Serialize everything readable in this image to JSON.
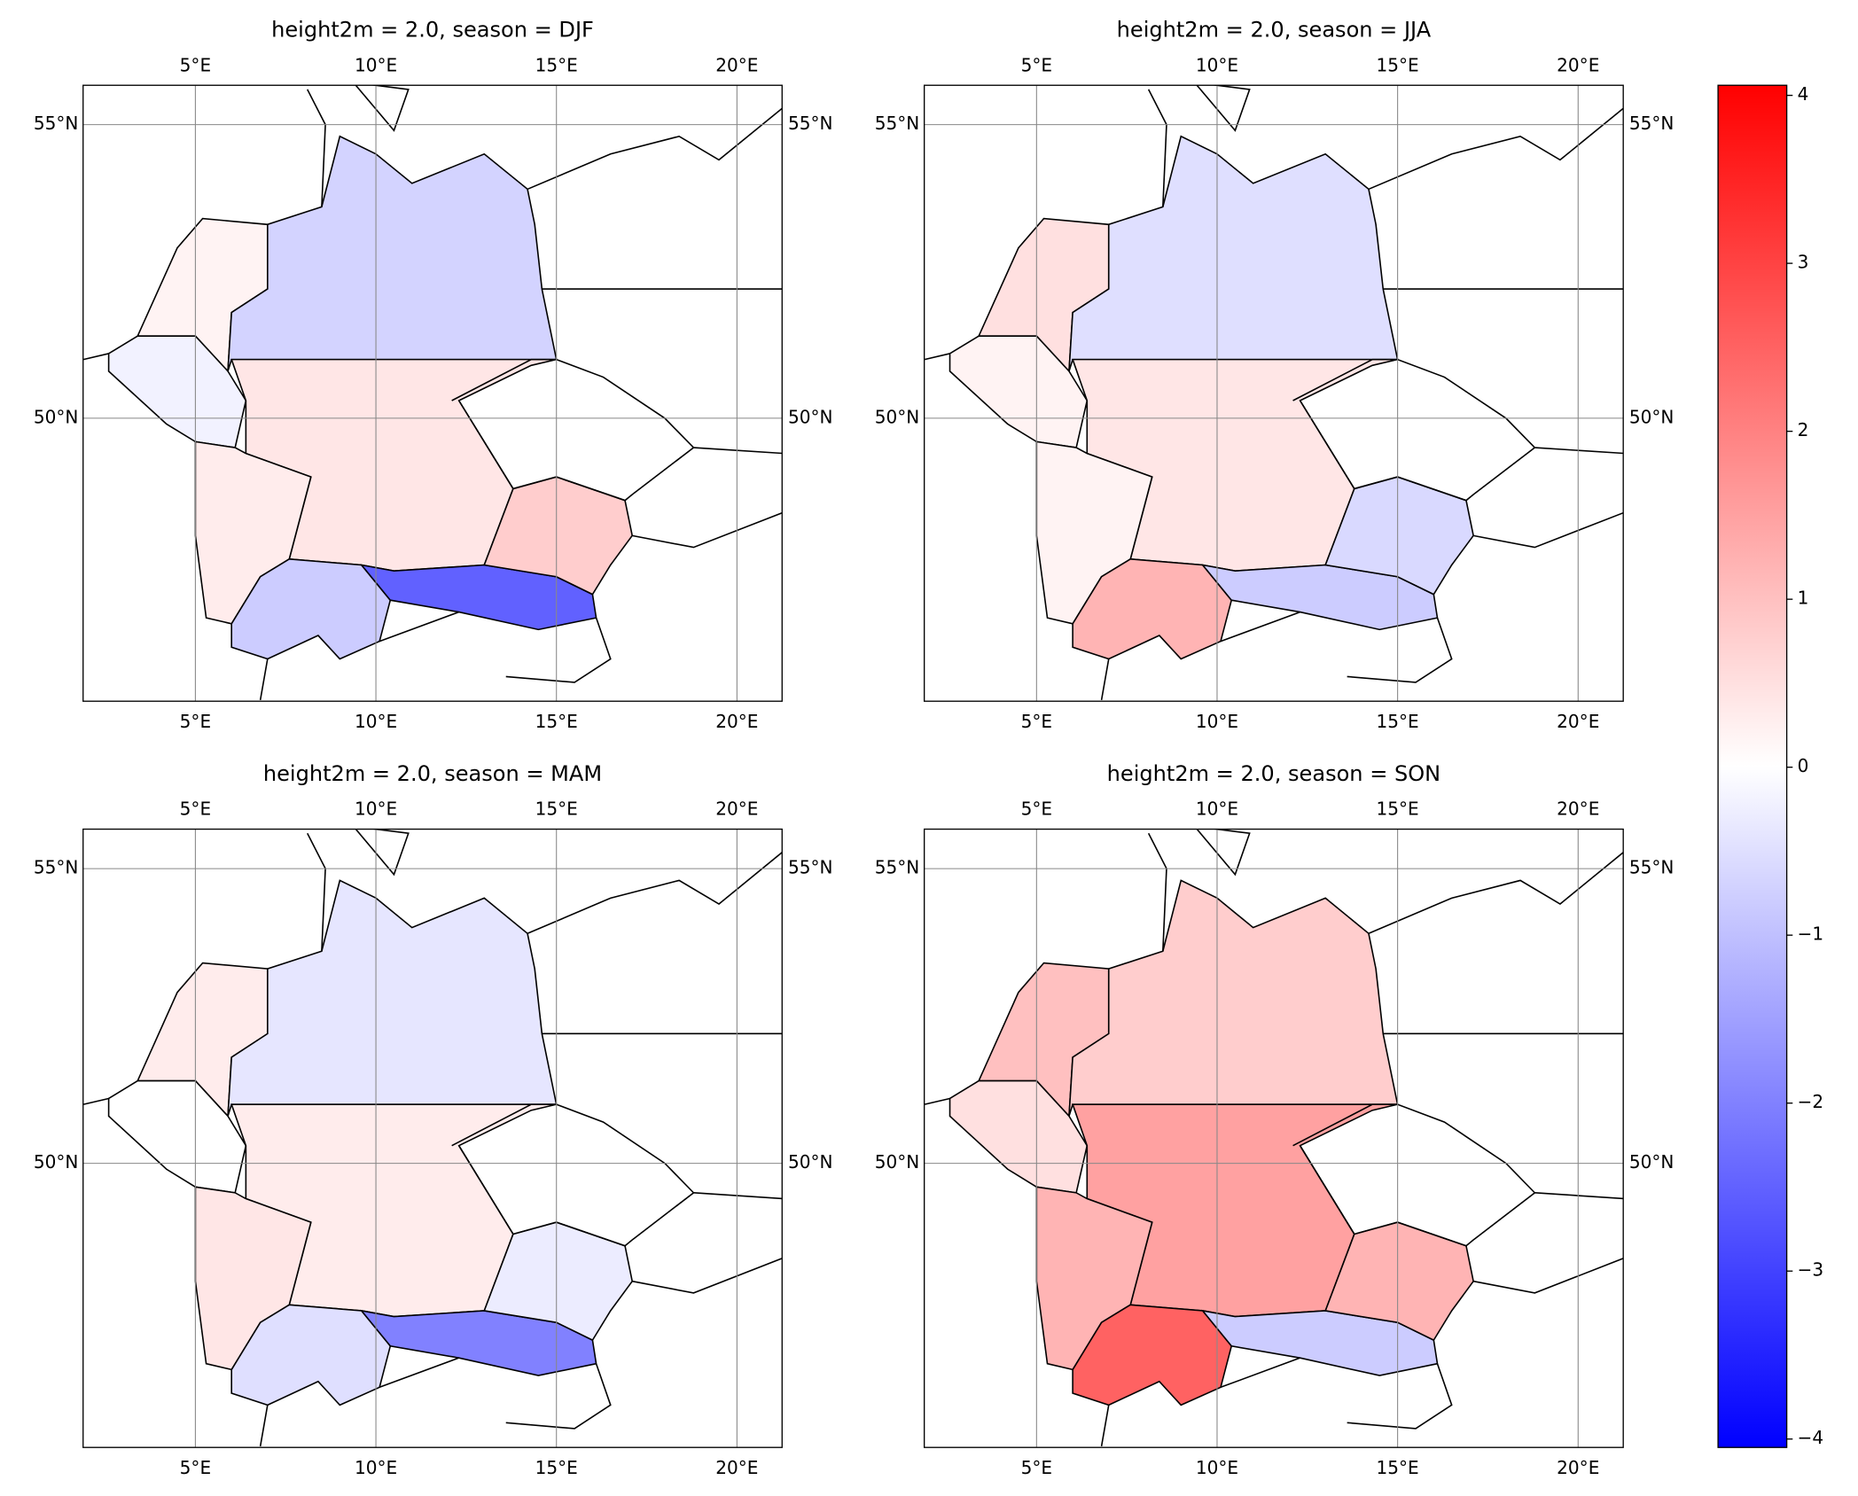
{
  "chart_data": [
    {
      "type": "heatmap",
      "title": "height2m = 2.0, season = DJF",
      "xlim": [
        1.89,
        21.25
      ],
      "ylim": [
        45.18,
        55.67
      ],
      "xticks": [
        {
          "value": 5,
          "label": "5°E"
        },
        {
          "value": 10,
          "label": "10°E"
        },
        {
          "value": 15,
          "label": "15°E"
        },
        {
          "value": 20,
          "label": "20°E"
        }
      ],
      "yticks": [
        {
          "value": 50,
          "label": "50°N"
        },
        {
          "value": 55,
          "label": "55°N"
        }
      ],
      "grid": true,
      "values": [
        0.2,
        -0.2,
        -0.7,
        0.4,
        0.3,
        -0.8,
        -2.5,
        0.8
      ]
    },
    {
      "type": "heatmap",
      "title": "height2m = 2.0, season = JJA",
      "xlim": [
        1.89,
        21.25
      ],
      "ylim": [
        45.18,
        55.67
      ],
      "xticks": [
        {
          "value": 5,
          "label": "5°E"
        },
        {
          "value": 10,
          "label": "10°E"
        },
        {
          "value": 15,
          "label": "15°E"
        },
        {
          "value": 20,
          "label": "20°E"
        }
      ],
      "yticks": [
        {
          "value": 50,
          "label": "50°N"
        },
        {
          "value": 55,
          "label": "55°N"
        }
      ],
      "grid": true,
      "values": [
        0.5,
        0.2,
        -0.5,
        0.4,
        0.2,
        1.2,
        -0.8,
        -0.6
      ]
    },
    {
      "type": "heatmap",
      "title": "height2m = 2.0, season = MAM",
      "xlim": [
        1.89,
        21.25
      ],
      "ylim": [
        45.18,
        55.67
      ],
      "xticks": [
        {
          "value": 5,
          "label": "5°E"
        },
        {
          "value": 10,
          "label": "10°E"
        },
        {
          "value": 15,
          "label": "15°E"
        },
        {
          "value": 20,
          "label": "20°E"
        }
      ],
      "yticks": [
        {
          "value": 50,
          "label": "50°N"
        },
        {
          "value": 55,
          "label": "55°N"
        }
      ],
      "grid": true,
      "values": [
        0.3,
        0.0,
        -0.4,
        0.3,
        0.4,
        -0.5,
        -2.0,
        -0.3
      ]
    },
    {
      "type": "heatmap",
      "title": "height2m = 2.0, season = SON",
      "xlim": [
        1.89,
        21.25
      ],
      "ylim": [
        45.18,
        55.67
      ],
      "xticks": [
        {
          "value": 5,
          "label": "5°E"
        },
        {
          "value": 10,
          "label": "10°E"
        },
        {
          "value": 15,
          "label": "15°E"
        },
        {
          "value": 20,
          "label": "20°E"
        }
      ],
      "yticks": [
        {
          "value": 50,
          "label": "50°N"
        },
        {
          "value": 55,
          "label": "55°N"
        }
      ],
      "grid": true,
      "values": [
        1.0,
        0.5,
        0.8,
        1.5,
        1.2,
        2.5,
        -0.8,
        1.2
      ]
    },
    {
      "type": "colorbar",
      "cmap": "bwr",
      "ylim": [
        -4.05,
        4.06
      ],
      "yticks": [
        {
          "value": -4,
          "label": "−4"
        },
        {
          "value": -3,
          "label": "−3"
        },
        {
          "value": -2,
          "label": "−2"
        },
        {
          "value": -1,
          "label": "−1"
        },
        0,
        1,
        2,
        3,
        4
      ]
    }
  ]
}
